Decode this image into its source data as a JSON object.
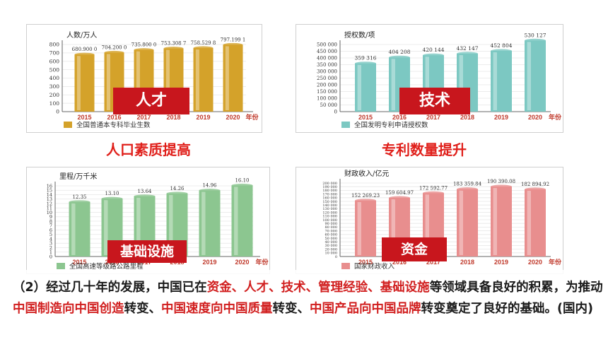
{
  "colors": {
    "gold": "#d4a22a",
    "teal": "#7cc8c2",
    "green": "#8cc690",
    "pink": "#e88e8e",
    "accent_red": "#c8161d",
    "highlight_red": "#d11f1f"
  },
  "charts": [
    {
      "unit_label": "人数/万人",
      "tag": "人才",
      "caption": "人口素质提高",
      "legend": "全国普通本专科毕业生数",
      "year_suffix": "年份"
    },
    {
      "unit_label": "授权数/项",
      "tag": "技术",
      "caption": "专利数量提升",
      "legend": "全国发明专利申请授权数",
      "year_suffix": "年份"
    },
    {
      "unit_label": "里程/万千米",
      "tag": "基础设施",
      "caption": "",
      "legend": "全国高速等级路公路里程",
      "year_suffix": "年份"
    },
    {
      "unit_label": "财政收入/亿元",
      "tag": "资金",
      "caption": "",
      "legend": "国家财政收入",
      "year_suffix": "年份"
    }
  ],
  "chart_data": [
    {
      "type": "bar",
      "categories": [
        "2015",
        "2016",
        "2017",
        "2018",
        "2019",
        "2020"
      ],
      "values": [
        680.9,
        704.2,
        735.8,
        753.3087,
        758.5298,
        797.1991
      ],
      "value_labels": [
        "680.900 0",
        "704.200 0",
        "735.800 0",
        "753.308 7",
        "758.529 8",
        "797.199 1"
      ],
      "ylabel": "人数/万人",
      "xlabel": "年份",
      "ylim": [
        0,
        800
      ],
      "yticks": [
        "0",
        "100",
        "200",
        "300",
        "400",
        "500",
        "600",
        "700",
        "800"
      ],
      "legend": "全国普通本专科毕业生数"
    },
    {
      "type": "bar",
      "categories": [
        "2015",
        "2016",
        "2017",
        "2018",
        "2019",
        "2020"
      ],
      "values": [
        359316,
        404208,
        420144,
        432147,
        452804,
        530127
      ],
      "value_labels": [
        "359 316",
        "404 208",
        "420 144",
        "432 147",
        "452 804",
        "530 127"
      ],
      "ylabel": "授权数/项",
      "xlabel": "年份",
      "ylim": [
        0,
        500000
      ],
      "yticks": [
        "0",
        "50 000",
        "100 000",
        "150 000",
        "200 000",
        "250 000",
        "300 000",
        "350 000",
        "400 000",
        "450 000",
        "500 000"
      ],
      "legend": "全国发明专利申请授权数"
    },
    {
      "type": "bar",
      "categories": [
        "2015",
        "2016",
        "2017",
        "2018",
        "2019",
        "2020"
      ],
      "values": [
        12.35,
        13.1,
        13.64,
        14.26,
        14.96,
        16.1
      ],
      "value_labels": [
        "12.35",
        "13.10",
        "13.64",
        "14.26",
        "14.96",
        "16.10"
      ],
      "ylabel": "里程/万千米",
      "xlabel": "年份",
      "ylim": [
        0,
        16
      ],
      "yticks": [
        "0",
        "1",
        "2",
        "3",
        "4",
        "5",
        "6",
        "7",
        "8",
        "9",
        "10",
        "11",
        "12",
        "13",
        "14",
        "15",
        "16"
      ],
      "legend": "全国高速等级路公路里程"
    },
    {
      "type": "bar",
      "categories": [
        "2015",
        "2016",
        "2017",
        "2018",
        "2019",
        "2020"
      ],
      "values": [
        152269.23,
        159604.97,
        172592.77,
        183359.84,
        190390.08,
        182894.92
      ],
      "value_labels": [
        "152 269.23",
        "159 604.97",
        "172 592.77",
        "183 359.84",
        "190 390.08",
        "182 894.92"
      ],
      "ylabel": "财政收入/亿元",
      "xlabel": "年份",
      "ylim": [
        0,
        200000
      ],
      "yticks": [
        "0",
        "10 000",
        "20 000",
        "30 000",
        "40 000",
        "50 000",
        "60 000",
        "70 000",
        "80 000",
        "90 000",
        "100 000",
        "110 000",
        "120 000",
        "130 000",
        "140 000",
        "150 000",
        "160 000",
        "170 000",
        "180 000",
        "190 000",
        "200 000"
      ],
      "legend": "国家财政收入"
    }
  ],
  "bottom_text": {
    "p1": "（2）经过几十年的发展，中国已在",
    "h1": "资金、人才、技术、管理经验、基础设施",
    "p2": "等领域具备良好的积累，为推动",
    "h2": "中国制造向中国创造",
    "p3": "转变、",
    "h3": "中国速度向中国质量",
    "p4": "转变、",
    "h4": "中国产品向中国品牌",
    "p5": "转变奠定了良好的基础。(国内)"
  }
}
